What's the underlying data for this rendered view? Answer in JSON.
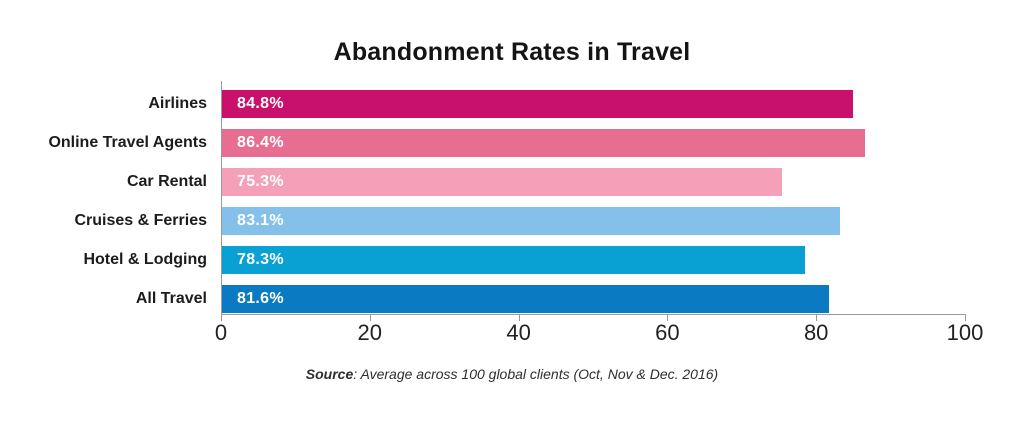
{
  "title": "Abandonment Rates in Travel",
  "source": {
    "label": "Source",
    "text": ": Average across 100 global clients (Oct, Nov & Dec. 2016)"
  },
  "chart_data": {
    "type": "bar",
    "orientation": "horizontal",
    "title": "Abandonment Rates in Travel",
    "categories": [
      "Airlines",
      "Online Travel Agents",
      "Car Rental",
      "Cruises & Ferries",
      "Hotel & Lodging",
      "All Travel"
    ],
    "values": [
      84.8,
      86.4,
      75.3,
      83.1,
      78.3,
      81.6
    ],
    "value_labels": [
      "84.8%",
      "86.4%",
      "75.3%",
      "83.1%",
      "78.3%",
      "81.6%"
    ],
    "bar_colors": [
      "#C9106B",
      "#E76E91",
      "#F3A0B8",
      "#85C0EA",
      "#09A0D4",
      "#0A7BC2"
    ],
    "xlabel": "",
    "ylabel": "",
    "xlim": [
      0,
      100
    ],
    "x_ticks": [
      0,
      20,
      40,
      60,
      80,
      100
    ],
    "grid": false,
    "legend": false,
    "axis_color": "#9a9a9a",
    "value_label_color": "#ffffff"
  }
}
